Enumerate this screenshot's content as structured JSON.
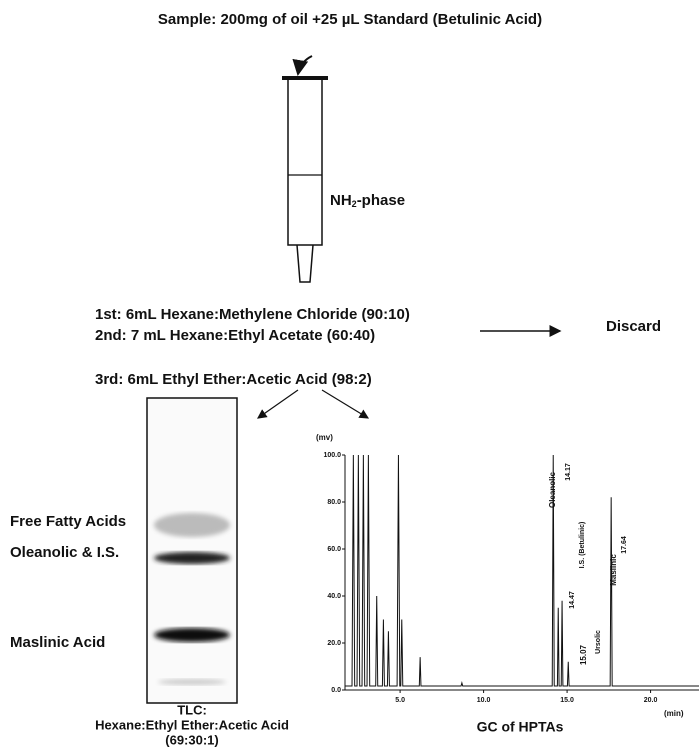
{
  "title": "Sample: 200mg of oil +25 µL Standard (Betulinic Acid)",
  "cartridge": {
    "label_main": "NH",
    "label_sub": "2",
    "label_rest": "-phase"
  },
  "steps": [
    "1st:  6mL  Hexane:Methylene Chloride (90:10)",
    "2nd:  7 mL Hexane:Ethyl Acetate (60:40)",
    "3rd:  6mL Ethyl Ether:Acetic Acid (98:2)"
  ],
  "discard": "Discard",
  "tlc": {
    "bands": [
      "Free Fatty Acids",
      "Oleanolic & I.S.",
      "Maslinic Acid"
    ],
    "caption": [
      "TLC:",
      "Hexane:Ethyl Ether:Acetic Acid",
      "(69:30:1)"
    ]
  },
  "gc": {
    "title": "GC of HPTAs",
    "y_unit": "(mv)",
    "x_unit": "(min)",
    "xlim": [
      1.7,
      22.9
    ],
    "ylim": [
      0,
      100
    ],
    "xticks": [
      {
        "value": 5,
        "label": "5.0"
      },
      {
        "value": 10,
        "label": "10.0"
      },
      {
        "value": 15,
        "label": "15.0"
      },
      {
        "value": 20,
        "label": "20.0"
      }
    ],
    "yticks": [
      {
        "value": 0,
        "label": "0.0"
      },
      {
        "value": 20,
        "label": "20.0"
      },
      {
        "value": 40,
        "label": "40.0"
      },
      {
        "value": 60,
        "label": "60.0"
      },
      {
        "value": 80,
        "label": "80.0"
      },
      {
        "value": 100,
        "label": "100.0"
      }
    ],
    "peak_labels": [
      "Oleanolic",
      "14.17",
      "I.S. (Betulinic)",
      "14.47",
      "15.07",
      "Ursolic",
      "Maslinic",
      "17.64"
    ]
  }
}
